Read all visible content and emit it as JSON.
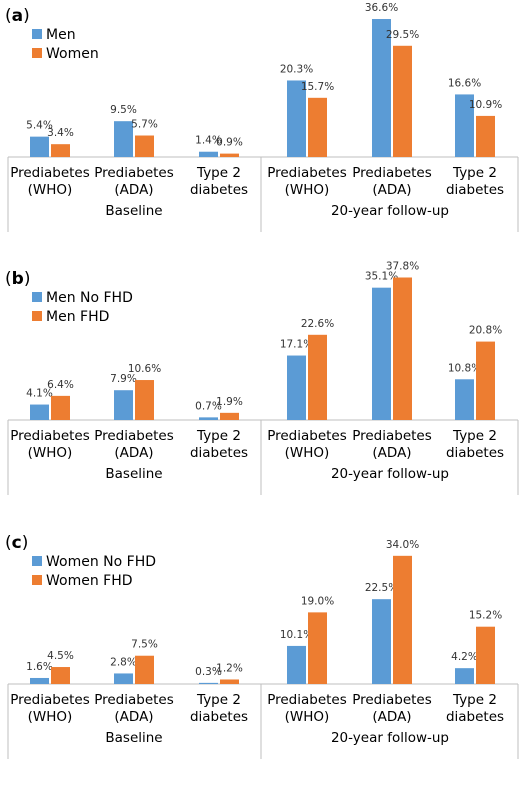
{
  "chart_data": [
    {
      "type": "bar",
      "panel_letter": "a",
      "categories": [
        "Prediabetes\n(WHO)",
        "Prediabetes\n(ADA)",
        "Type 2\ndiabetes",
        "Prediabetes\n(WHO)",
        "Prediabetes\n(ADA)",
        "Type 2\ndiabetes"
      ],
      "groups": [
        "Baseline",
        "20-year follow-up"
      ],
      "series": [
        {
          "name": "Men",
          "color": "#5b9bd5",
          "values": [
            5.4,
            9.5,
            1.4,
            20.3,
            36.6,
            16.6
          ],
          "labels": [
            "5.4%",
            "9.5%",
            "1.4%",
            "20.3%",
            "36.6%",
            "16.6%"
          ]
        },
        {
          "name": "Women",
          "color": "#ed7d31",
          "values": [
            3.4,
            5.7,
            0.9,
            15.7,
            29.5,
            10.9
          ],
          "labels": [
            "3.4%",
            "5.7%",
            "0.9%",
            "15.7%",
            "29.5%",
            "10.9%"
          ]
        }
      ],
      "ylim": [
        0,
        40
      ],
      "grid": false,
      "legend": "top-left"
    },
    {
      "type": "bar",
      "panel_letter": "b",
      "categories": [
        "Prediabetes\n(WHO)",
        "Prediabetes\n(ADA)",
        "Type 2\ndiabetes",
        "Prediabetes\n(WHO)",
        "Prediabetes\n(ADA)",
        "Type 2\ndiabetes"
      ],
      "groups": [
        "Baseline",
        "20-year follow-up"
      ],
      "series": [
        {
          "name": "Men No FHD",
          "color": "#5b9bd5",
          "values": [
            4.1,
            7.9,
            0.7,
            17.1,
            35.1,
            10.8
          ],
          "labels": [
            "4.1%",
            "7.9%",
            "0.7%",
            "17.1%",
            "35.1%",
            "10.8%"
          ]
        },
        {
          "name": "Men FHD",
          "color": "#ed7d31",
          "values": [
            6.4,
            10.6,
            1.9,
            22.6,
            37.8,
            20.8
          ],
          "labels": [
            "6.4%",
            "10.6%",
            "1.9%",
            "22.6%",
            "37.8%",
            "20.8%"
          ]
        }
      ],
      "ylim": [
        0,
        40
      ],
      "grid": false,
      "legend": "top-left"
    },
    {
      "type": "bar",
      "panel_letter": "c",
      "categories": [
        "Prediabetes\n(WHO)",
        "Prediabetes\n(ADA)",
        "Type 2\ndiabetes",
        "Prediabetes\n(WHO)",
        "Prediabetes\n(ADA)",
        "Type 2\ndiabetes"
      ],
      "groups": [
        "Baseline",
        "20-year follow-up"
      ],
      "series": [
        {
          "name": "Women No FHD",
          "color": "#5b9bd5",
          "values": [
            1.6,
            2.8,
            0.3,
            10.1,
            22.5,
            4.2
          ],
          "labels": [
            "1.6%",
            "2.8%",
            "0.3%",
            "10.1%",
            "22.5%",
            "4.2%"
          ]
        },
        {
          "name": "Women FHD",
          "color": "#ed7d31",
          "values": [
            4.5,
            7.5,
            1.2,
            19.0,
            34.0,
            15.2
          ],
          "labels": [
            "4.5%",
            "7.5%",
            "1.2%",
            "19.0%",
            "34.0%",
            "15.2%"
          ]
        }
      ],
      "ylim": [
        0,
        40
      ],
      "grid": false,
      "legend": "top-left"
    }
  ]
}
